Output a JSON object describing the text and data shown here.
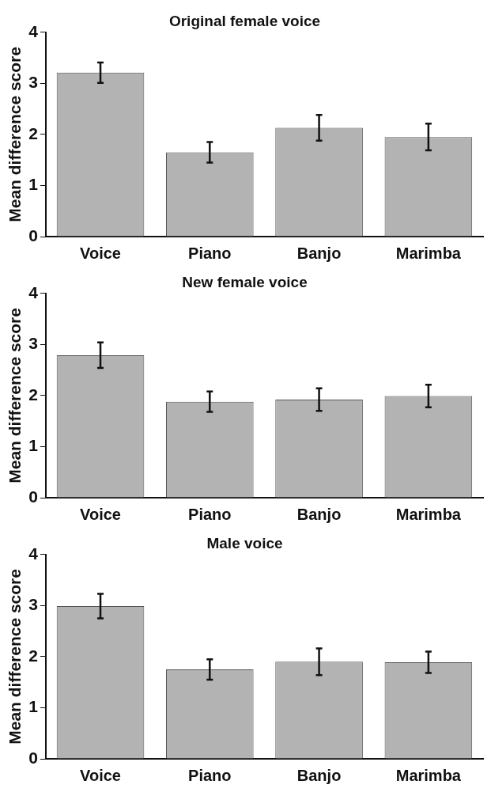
{
  "chart_data": [
    {
      "type": "bar",
      "title": "Original female voice",
      "ylabel": "Mean difference score",
      "categories": [
        "Voice",
        "Piano",
        "Banjo",
        "Marimba"
      ],
      "values": [
        3.21,
        1.65,
        2.13,
        1.95
      ],
      "errors": [
        0.2,
        0.2,
        0.25,
        0.26
      ],
      "color": "#b3b3b3",
      "ylim": [
        0,
        4
      ],
      "yticks": [
        0,
        1,
        2,
        3,
        4
      ]
    },
    {
      "type": "bar",
      "title": "New female voice",
      "ylabel": "Mean difference score",
      "categories": [
        "Voice",
        "Piano",
        "Banjo",
        "Marimba"
      ],
      "values": [
        2.79,
        1.88,
        1.92,
        1.99
      ],
      "errors": [
        0.25,
        0.2,
        0.22,
        0.22
      ],
      "color": "#b3b3b3",
      "ylim": [
        0,
        4
      ],
      "yticks": [
        0,
        1,
        2,
        3,
        4
      ]
    },
    {
      "type": "bar",
      "title": "Male voice",
      "ylabel": "Mean difference score",
      "categories": [
        "Voice",
        "Piano",
        "Banjo",
        "Marimba"
      ],
      "values": [
        2.99,
        1.75,
        1.9,
        1.89
      ],
      "errors": [
        0.24,
        0.2,
        0.26,
        0.21
      ],
      "color": "#b3b3b3",
      "ylim": [
        0,
        4
      ],
      "yticks": [
        0,
        1,
        2,
        3,
        4
      ]
    }
  ]
}
